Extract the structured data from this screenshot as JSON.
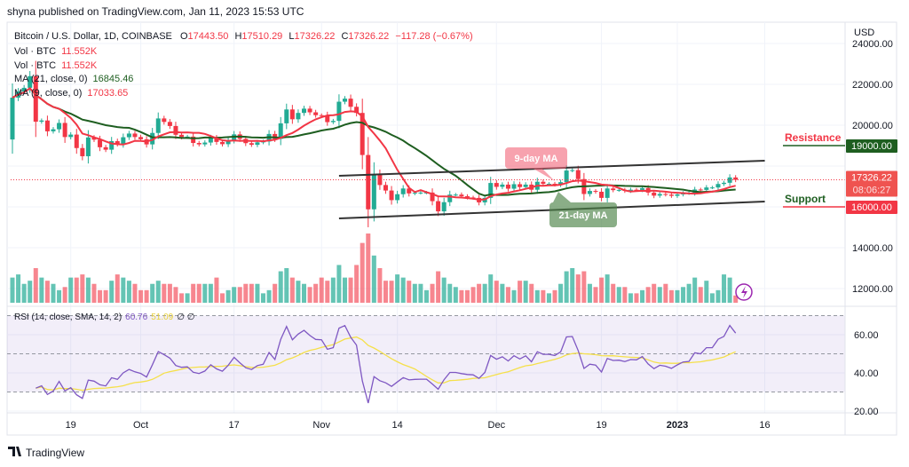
{
  "published_by": "shyna published on TradingView.com, Jan 11, 2023 15:53 UTC",
  "legend": {
    "symbol": "Bitcoin / U.S. Dollar, 1D, COINBASE",
    "o_label": "O",
    "o": "17443.50",
    "h_label": "H",
    "h": "17510.29",
    "l_label": "L",
    "l": "17326.22",
    "c_label": "C",
    "c": "17326.22",
    "change": "−117.28 (−0.67%)",
    "vol1_label": "Vol · BTC",
    "vol1": "11.552K",
    "vol2_label": "Vol · BTC",
    "vol2": "11.552K",
    "ma21_label": "MA (21, close, 0)",
    "ma21": "16845.46",
    "ma9_label": "MA (9, close, 0)",
    "ma9": "17033.65",
    "rsi_label": "RSI (14, close, SMA, 14, 2)",
    "rsi": "60.76",
    "rsi_sma": "51.09",
    "rsi_extra": "∅ ∅"
  },
  "currency": "USD",
  "price_label": {
    "value": "17326.22",
    "countdown": "08:06:27"
  },
  "levels": {
    "resistance": {
      "label": "Resistance",
      "value": "19000.00",
      "price": 19000
    },
    "support": {
      "label": "Support",
      "value": "16000.00",
      "price": 16000
    }
  },
  "callouts": {
    "ma9": "9-day MA",
    "ma21": "21-day MA"
  },
  "brand": "TradingView",
  "colors": {
    "up": "#22ab94",
    "down": "#f23645",
    "ma21": "#1e5e20",
    "ma9": "#f23645",
    "rsi": "#7e57c2",
    "rsi_sma": "#f5e04a",
    "resistance_box": "#1e5e20",
    "support_box": "#f23645"
  },
  "chart_data": {
    "type": "candlestick",
    "start_date": "2022-09-09",
    "first_open": 19300,
    "close": [
      21350,
      21650,
      21830,
      22400,
      20170,
      20230,
      19700,
      19800,
      20110,
      19420,
      19540,
      18880,
      18480,
      19400,
      19290,
      18920,
      18800,
      19220,
      19080,
      19410,
      19590,
      19420,
      19310,
      19060,
      19620,
      20330,
      20160,
      19960,
      19530,
      19420,
      19440,
      19130,
      19060,
      19150,
      19380,
      19180,
      19070,
      19270,
      19550,
      19330,
      19120,
      19040,
      19160,
      19200,
      19570,
      19330,
      20090,
      20770,
      20290,
      20600,
      20810,
      20630,
      20490,
      20480,
      20150,
      20210,
      21150,
      21300,
      20900,
      20600,
      18540,
      15880,
      17590,
      17070,
      16800,
      16330,
      16620,
      16900,
      16660,
      16690,
      16700,
      16700,
      16280,
      15780,
      16230,
      16600,
      16600,
      16520,
      16460,
      16440,
      16220,
      16440,
      17170,
      16980,
      17090,
      16890,
      17110,
      16970,
      17090,
      16840,
      17230,
      17130,
      17130,
      17090,
      17210,
      17780,
      17800,
      17360,
      16630,
      16780,
      16740,
      16440,
      16900,
      16820,
      16830,
      16780,
      16840,
      16830,
      16920,
      16700,
      16550,
      16630,
      16600,
      16540,
      16610,
      16670,
      16680,
      16850,
      16830,
      16950,
      16950,
      17120,
      17180,
      17440,
      17326.22
    ],
    "volume_k": [
      40,
      45,
      30,
      35,
      55,
      40,
      35,
      30,
      20,
      25,
      40,
      40,
      45,
      40,
      30,
      20,
      20,
      35,
      45,
      40,
      35,
      30,
      20,
      20,
      30,
      35,
      30,
      30,
      25,
      15,
      15,
      30,
      30,
      30,
      30,
      40,
      15,
      20,
      25,
      25,
      30,
      30,
      30,
      15,
      20,
      30,
      50,
      55,
      40,
      35,
      30,
      25,
      30,
      40,
      35,
      40,
      60,
      40,
      40,
      60,
      95,
      110,
      75,
      55,
      35,
      35,
      45,
      40,
      35,
      30,
      30,
      20,
      30,
      50,
      40,
      30,
      25,
      20,
      20,
      25,
      30,
      30,
      45,
      35,
      30,
      25,
      20,
      35,
      35,
      30,
      20,
      20,
      15,
      20,
      30,
      50,
      55,
      45,
      50,
      30,
      25,
      40,
      45,
      30,
      25,
      25,
      15,
      15,
      20,
      25,
      30,
      25,
      30,
      20,
      20,
      25,
      30,
      40,
      25,
      35,
      15,
      20,
      45,
      40,
      11.552
    ],
    "price_ticks": [
      12000,
      14000,
      16000,
      18000,
      20000,
      22000,
      24000
    ],
    "rsi_ticks": [
      20,
      40,
      60
    ],
    "rsi_bands": [
      30,
      50,
      70
    ],
    "x_ticks": [
      {
        "label": "19",
        "date": "2022-09-19"
      },
      {
        "label": "Oct",
        "date": "2022-10-01"
      },
      {
        "label": "17",
        "date": "2022-10-17"
      },
      {
        "label": "Nov",
        "date": "2022-11-01"
      },
      {
        "label": "14",
        "date": "2022-11-14"
      },
      {
        "label": "Dec",
        "date": "2022-12-01"
      },
      {
        "label": "19",
        "date": "2022-12-19"
      },
      {
        "label": "2023",
        "date": "2023-01-01",
        "bold": true
      },
      {
        "label": "16",
        "date": "2023-01-16"
      }
    ],
    "trendlines": [
      {
        "name": "upper-channel",
        "from": {
          "date": "2022-11-04",
          "price": 17520
        },
        "to": {
          "date": "2023-01-16",
          "price": 18260
        }
      },
      {
        "name": "lower-channel",
        "from": {
          "date": "2022-11-04",
          "price": 15435
        },
        "to": {
          "date": "2023-01-16",
          "price": 16260
        }
      }
    ],
    "ma_periods": [
      9,
      21
    ],
    "rsi_period": 14
  }
}
